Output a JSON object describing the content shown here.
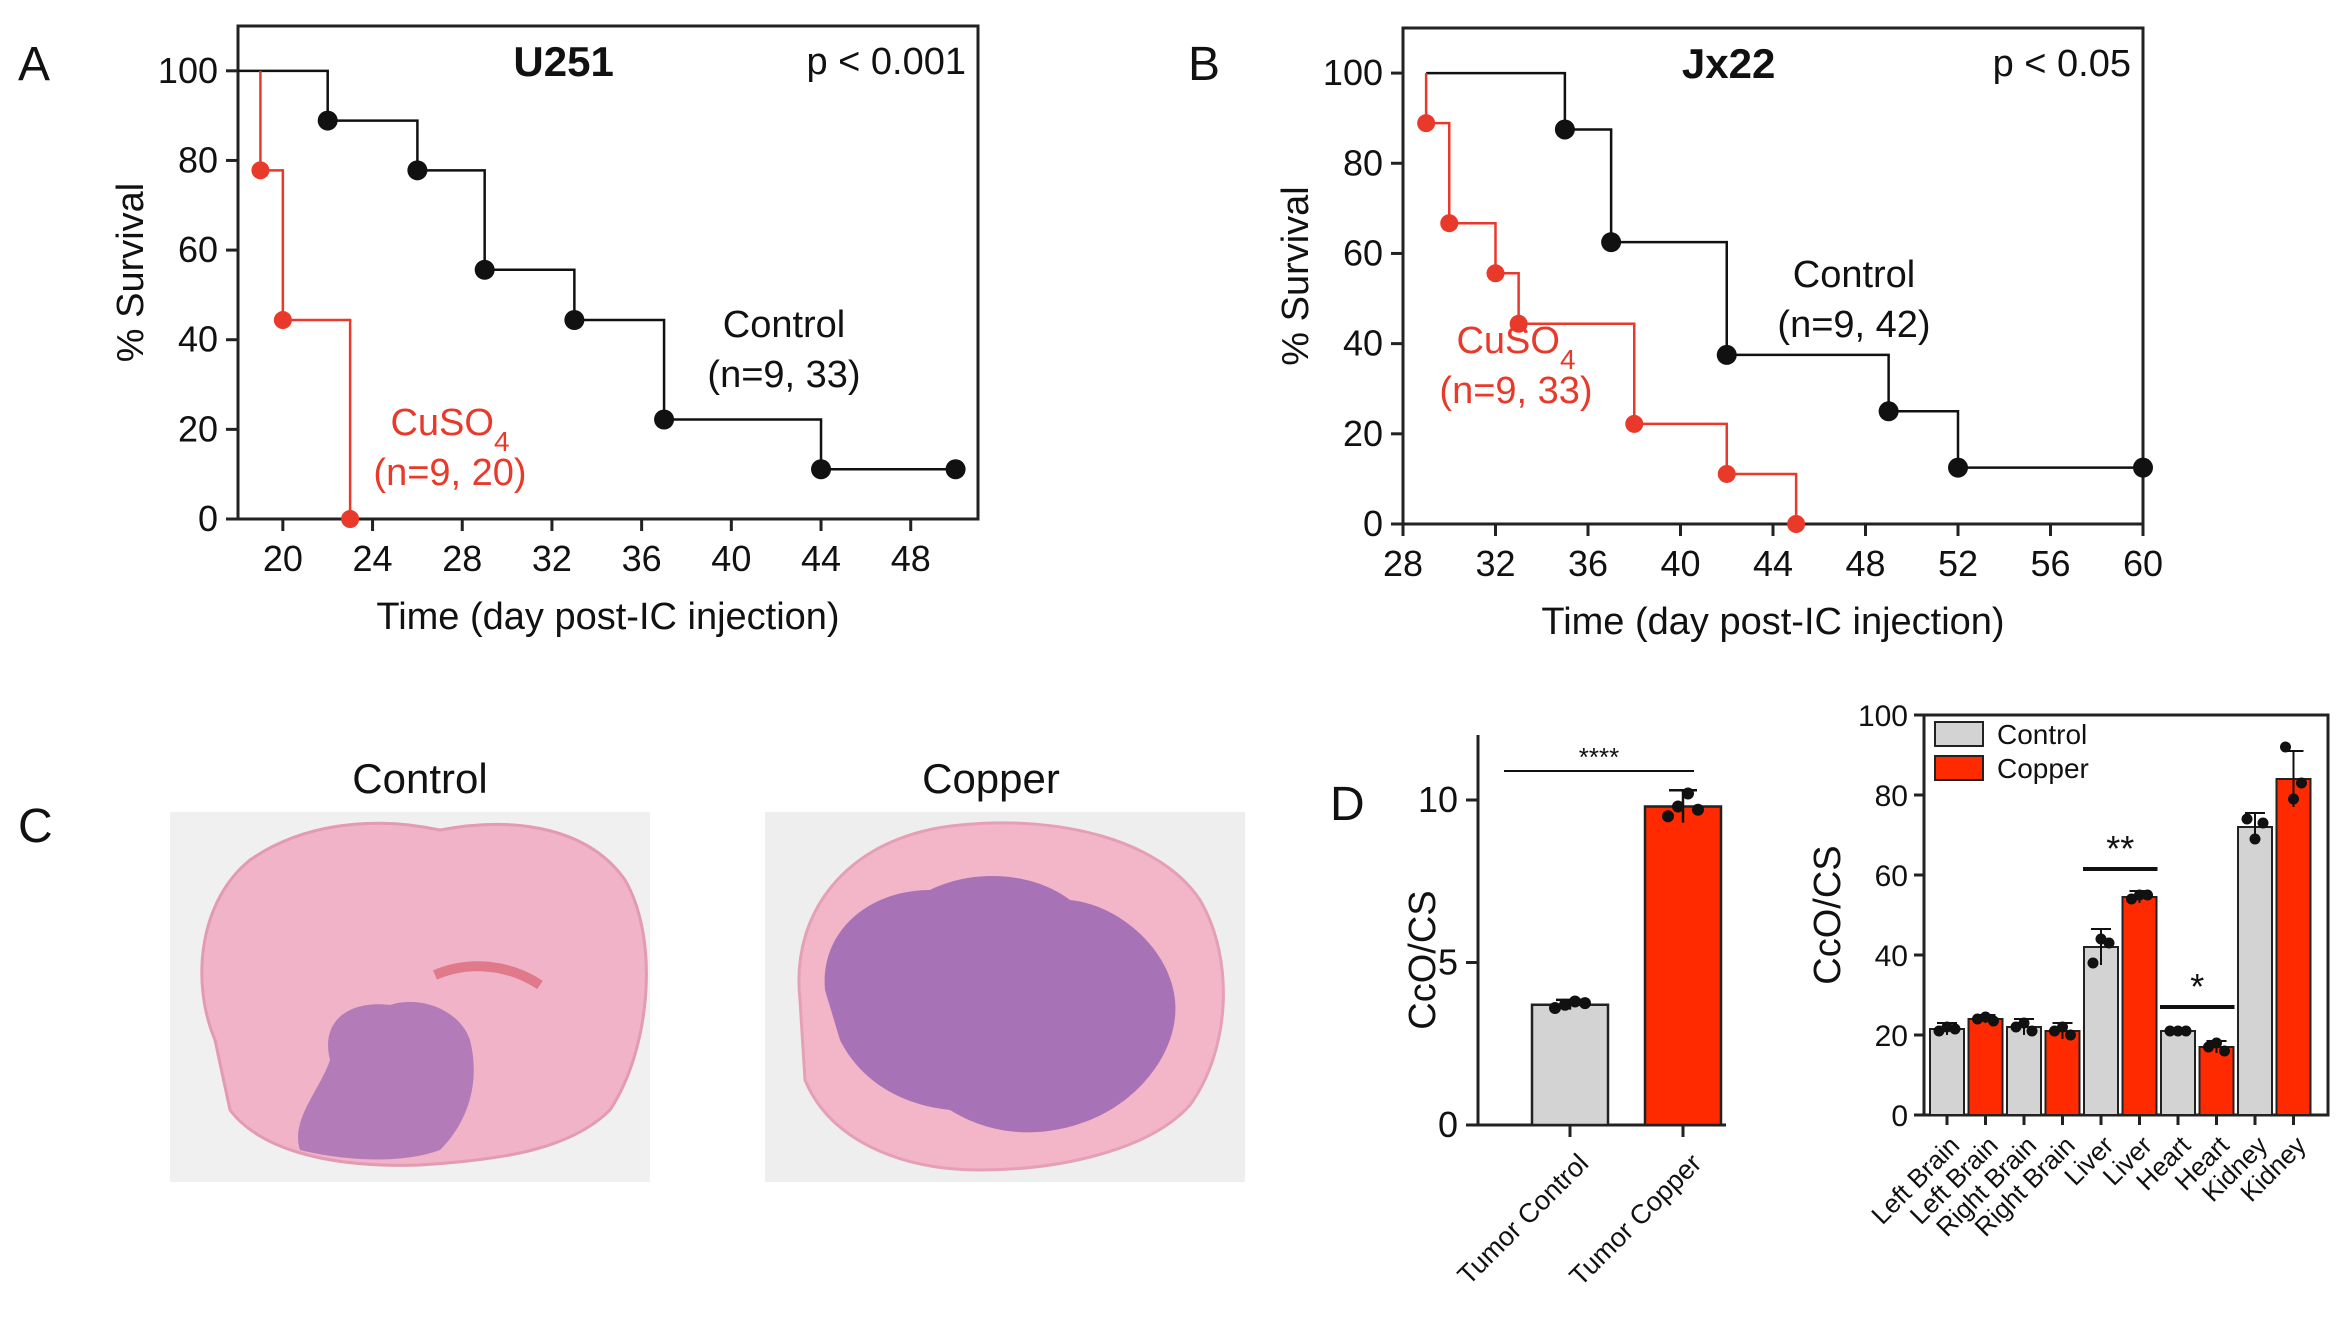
{
  "panels": {
    "A": "A",
    "B": "B",
    "C": "C",
    "D": "D"
  },
  "colors": {
    "control": "#111111",
    "cuso4": "#e8392a",
    "copper_bar": "#ff2a00",
    "control_bar": "#d3d3d3"
  },
  "histology": {
    "control_label": "Control",
    "copper_label": "Copper",
    "tissue": "#f2b6c8",
    "tumor": "#a872b6"
  },
  "chart_data": [
    {
      "id": "A",
      "type": "line",
      "title": "U251",
      "pvalue": "p < 0.001",
      "xlabel": "Time (day post-IC injection)",
      "ylabel": "% Survival",
      "xlim": [
        18,
        51
      ],
      "ylim": [
        0,
        110
      ],
      "xticks": [
        20,
        24,
        28,
        32,
        36,
        40,
        44,
        48
      ],
      "yticks": [
        0,
        20,
        40,
        60,
        80,
        100
      ],
      "series": [
        {
          "name": "Control",
          "label_line2": "(n=9, 33)",
          "color": "#111111",
          "x": [
            18,
            22,
            26,
            29,
            33,
            37,
            44,
            50
          ],
          "y": [
            100,
            88.9,
            77.8,
            55.6,
            44.4,
            22.2,
            11.1,
            11.1
          ],
          "marker_start": 1
        },
        {
          "name": "CuSO4",
          "label_line2": "(n=9, 20)",
          "color": "#e8392a",
          "x": [
            19,
            19,
            20,
            23
          ],
          "y": [
            100,
            77.8,
            44.4,
            0
          ],
          "marker_start": 1
        }
      ]
    },
    {
      "id": "B",
      "type": "line",
      "title": "Jx22",
      "pvalue": "p < 0.05",
      "xlabel": "Time (day post-IC injection)",
      "ylabel": "% Survival",
      "xlim": [
        28,
        60
      ],
      "ylim": [
        0,
        110
      ],
      "xticks": [
        28,
        32,
        36,
        40,
        44,
        48,
        52,
        56,
        60
      ],
      "yticks": [
        0,
        20,
        40,
        60,
        80,
        100
      ],
      "series": [
        {
          "name": "Control",
          "label_line2": "(n=9, 42)",
          "color": "#111111",
          "x": [
            29,
            35,
            37,
            42,
            49,
            52,
            60
          ],
          "y": [
            100,
            87.5,
            62.5,
            37.5,
            25,
            12.5,
            12.5
          ],
          "marker_start": 1
        },
        {
          "name": "CuSO4",
          "label_line2": "(n=9, 33)",
          "color": "#e8392a",
          "x": [
            29,
            29,
            30,
            32,
            33,
            38,
            42,
            45
          ],
          "y": [
            100,
            88.9,
            66.7,
            55.6,
            44.4,
            22.2,
            11.1,
            0
          ],
          "marker_start": 1
        }
      ]
    },
    {
      "id": "D1",
      "type": "bar",
      "ylabel": "CcO/CS",
      "ylim": [
        0,
        12
      ],
      "yticks": [
        0,
        5,
        10
      ],
      "categories": [
        "Tumor Control",
        "Tumor Copper"
      ],
      "values": [
        3.7,
        9.8
      ],
      "errors": [
        0.15,
        0.5
      ],
      "points": [
        [
          3.6,
          3.7,
          3.8,
          3.75
        ],
        [
          9.5,
          9.8,
          10.2,
          9.7
        ]
      ],
      "colors": [
        "#d3d3d3",
        "#ff2a00"
      ],
      "significance": "****"
    },
    {
      "id": "D2",
      "type": "bar",
      "ylabel": "CcO/CS",
      "ylim": [
        0,
        100
      ],
      "yticks": [
        0,
        20,
        40,
        60,
        80,
        100
      ],
      "legend": {
        "placement": "top-left",
        "entries": [
          "Control",
          "Copper"
        ]
      },
      "categories": [
        "Left Brain",
        "Left Brain",
        "Right Brain",
        "Right Brain",
        "Liver",
        "Liver",
        "Heart",
        "Heart",
        "Kidney",
        "Kidney"
      ],
      "values": [
        21.5,
        24,
        22,
        21,
        42,
        54.5,
        21,
        17,
        72,
        84
      ],
      "errors": [
        1.5,
        1,
        2,
        2,
        4.5,
        1.5,
        0.5,
        1.5,
        3.5,
        7
      ],
      "points": [
        [
          21,
          22,
          21.5
        ],
        [
          24,
          24.5,
          23.5
        ],
        [
          22,
          23,
          21
        ],
        [
          21,
          22,
          20
        ],
        [
          38,
          44,
          43
        ],
        [
          54,
          55,
          55
        ],
        [
          21,
          21,
          21
        ],
        [
          17,
          18,
          16
        ],
        [
          74,
          69,
          73
        ],
        [
          92,
          79,
          83
        ]
      ],
      "groups": [
        "Control",
        "Copper",
        "Control",
        "Copper",
        "Control",
        "Copper",
        "Control",
        "Copper",
        "Control",
        "Copper"
      ],
      "significance": [
        {
          "between": [
            4,
            5
          ],
          "label": "**"
        },
        {
          "between": [
            6,
            7
          ],
          "label": "*"
        }
      ]
    }
  ]
}
